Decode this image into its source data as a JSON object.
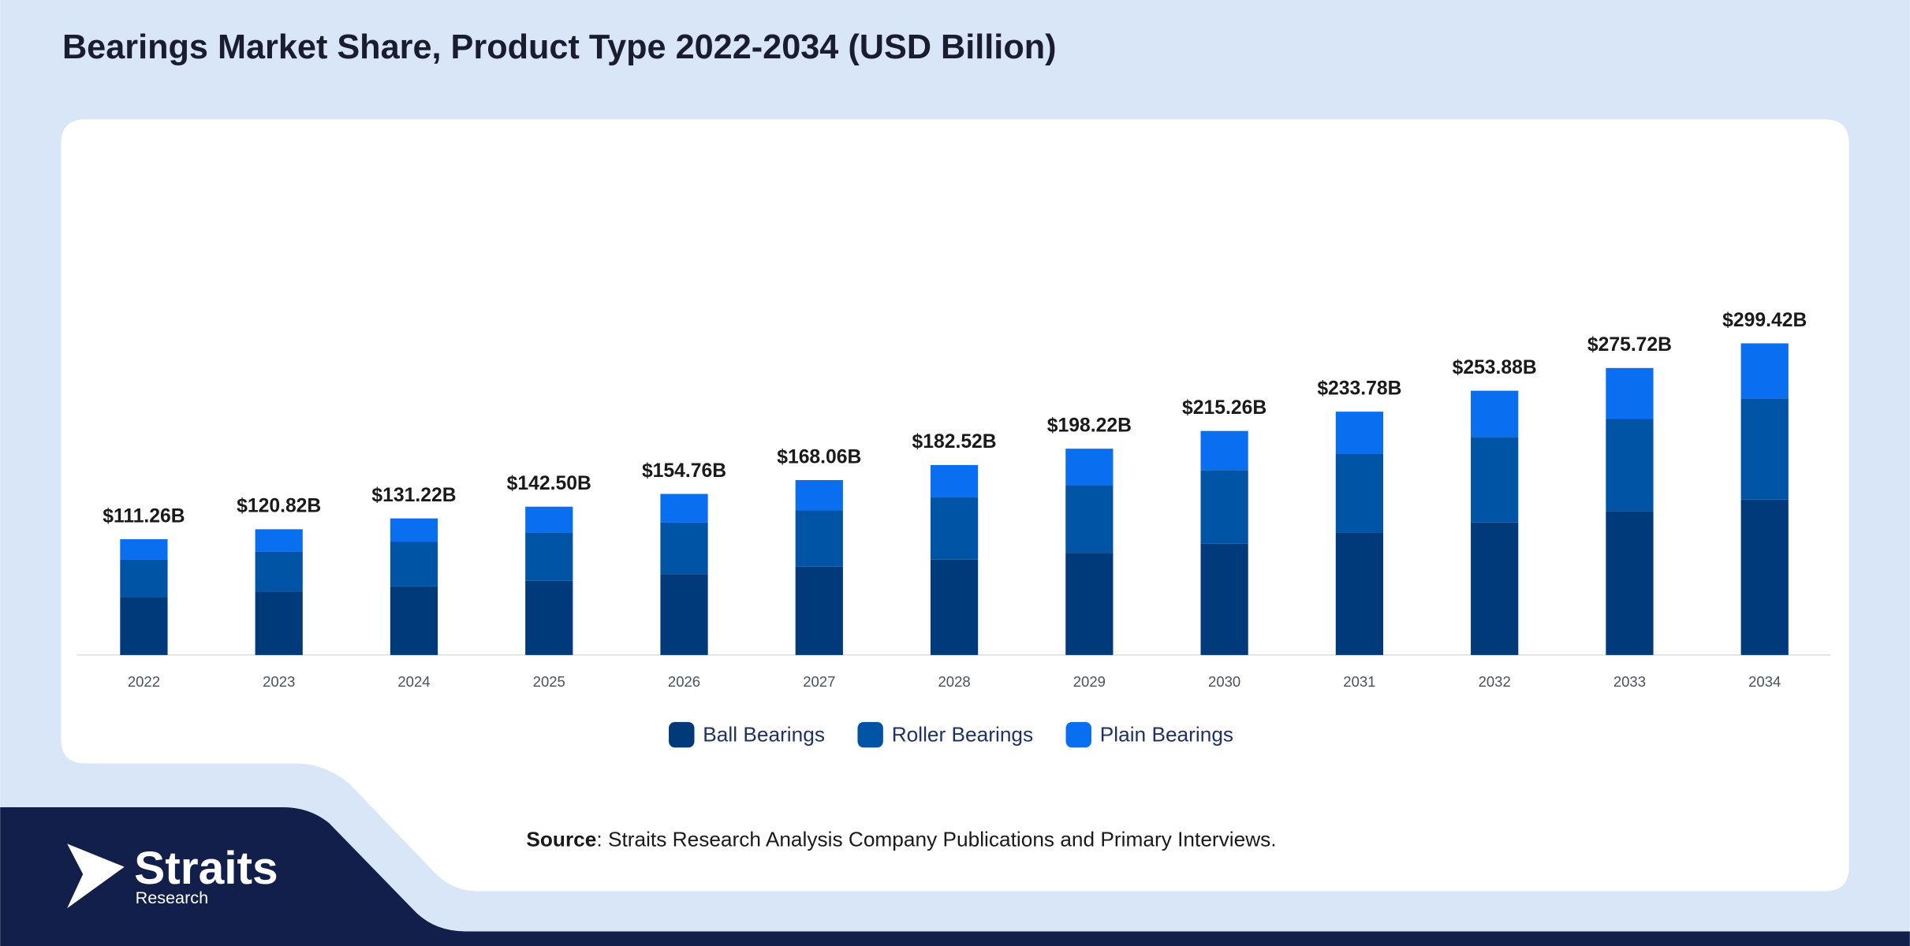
{
  "chart_data": {
    "type": "stacked-bar",
    "title": "Bearings Market Share, Product Type 2022-2034 (USD Billion)",
    "categories": [
      "2022",
      "2023",
      "2024",
      "2025",
      "2026",
      "2027",
      "2028",
      "2029",
      "2030",
      "2031",
      "2032",
      "2033",
      "2034"
    ],
    "series": [
      {
        "name": "Ball Bearings",
        "color": "#003a7a",
        "values": [
          55.63,
          60.84,
          66.04,
          71.25,
          77.8,
          84.89,
          91.69,
          98.26,
          106.78,
          117.32,
          127.37,
          138.28,
          149.28
        ]
      },
      {
        "name": "Roller Bearings",
        "color": "#0054a6",
        "values": [
          35.95,
          38.56,
          42.88,
          46.36,
          49.59,
          54.02,
          59.98,
          64.93,
          70.9,
          76.21,
          82.06,
          88.77,
          97.25
        ]
      },
      {
        "name": "Plain Bearings",
        "color": "#0a6ef0",
        "values": [
          19.68,
          21.42,
          22.3,
          24.89,
          27.37,
          29.15,
          30.85,
          35.03,
          37.58,
          40.25,
          44.45,
          48.67,
          52.89
        ]
      }
    ],
    "totals": {
      "values": [
        111.26,
        120.82,
        131.22,
        142.5,
        154.76,
        168.06,
        182.52,
        198.22,
        215.26,
        233.78,
        253.88,
        275.72,
        299.42
      ],
      "value_labels": [
        "$111.26B",
        "$120.82B",
        "$131.22B",
        "$142.50B",
        "$154.76B",
        "$168.06B",
        "$182.52B",
        "$198.22B",
        "$215.26B",
        "$233.78B",
        "$253.88B",
        "$275.72B",
        "$299.42B"
      ]
    },
    "legend": "bottom"
  },
  "source": {
    "label": "Source",
    "text": ": Straits Research Analysis Company Publications and Primary Interviews."
  },
  "logo": {
    "name": "Straits",
    "sub": "Research"
  }
}
